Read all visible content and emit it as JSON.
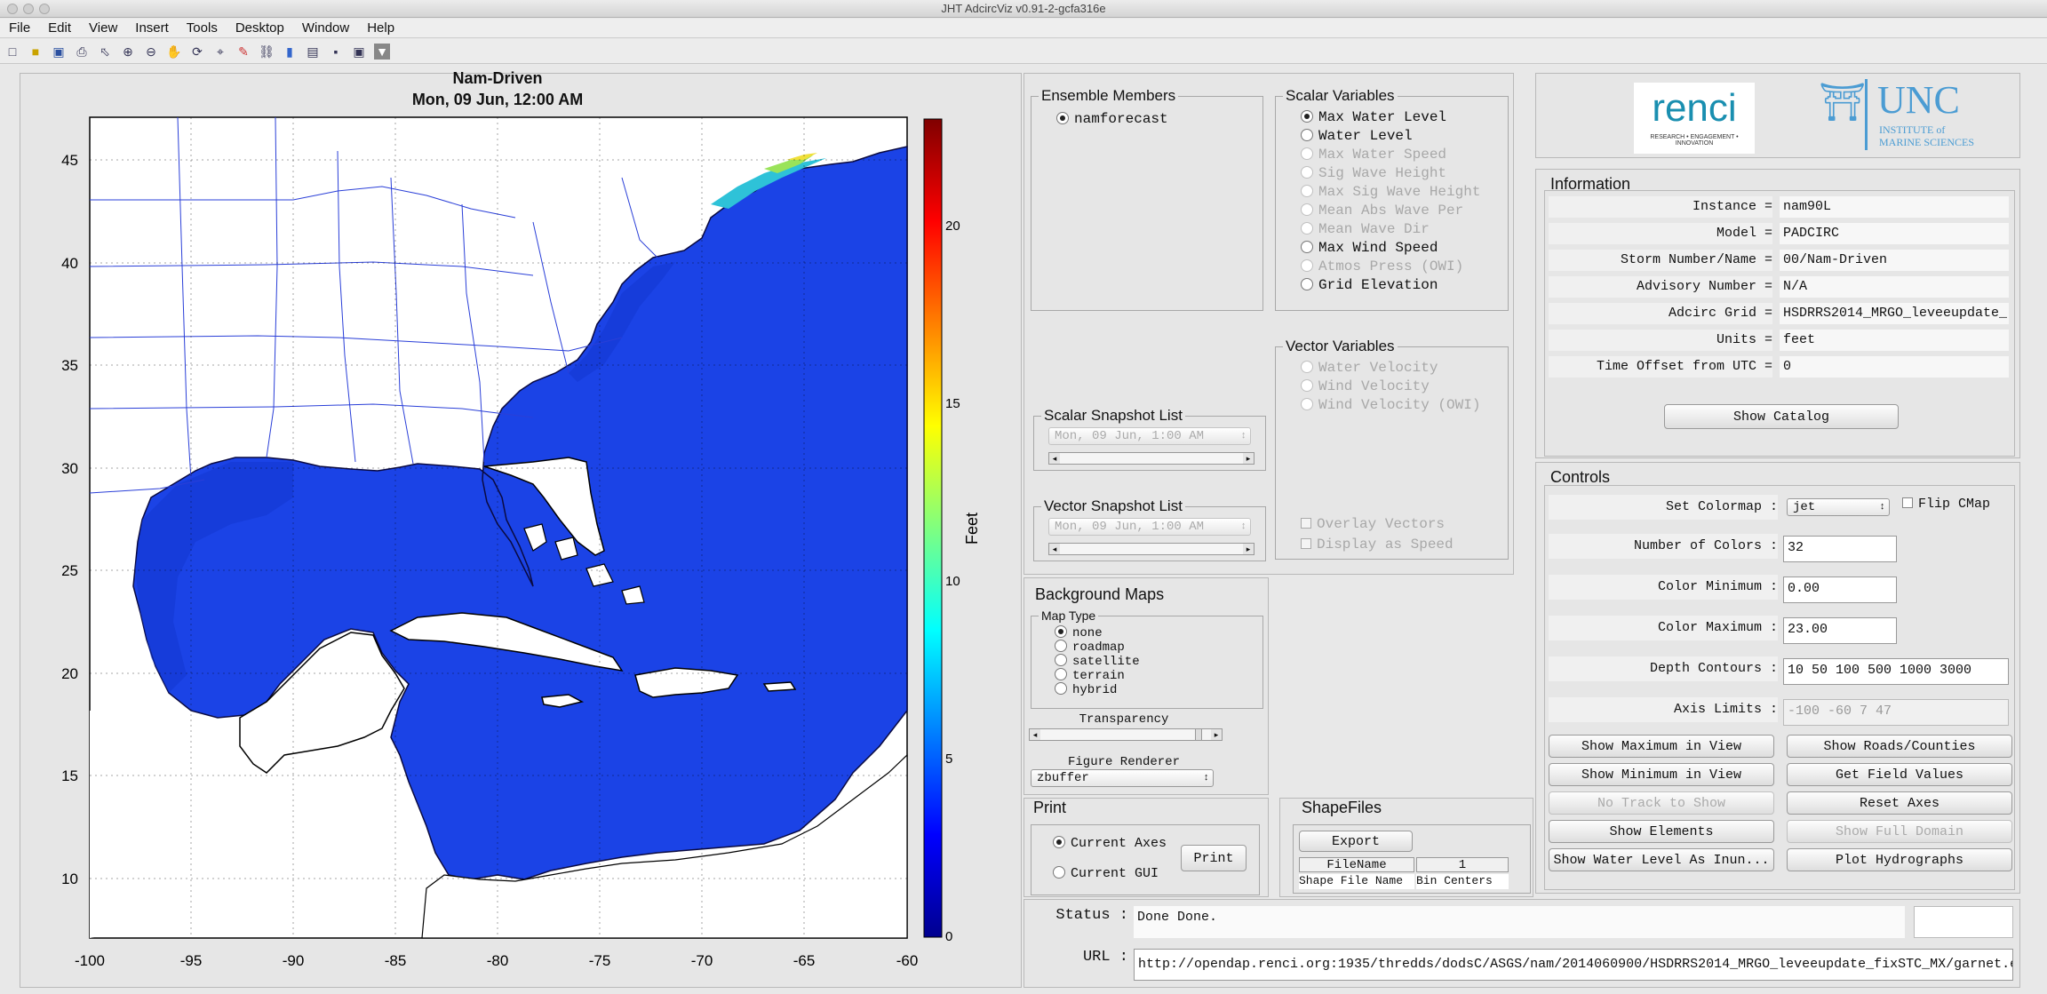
{
  "window": {
    "title": "JHT AdcircViz v0.91-2-gcfa316e"
  },
  "menu": [
    "File",
    "Edit",
    "View",
    "Insert",
    "Tools",
    "Desktop",
    "Window",
    "Help"
  ],
  "toolbar_icons": [
    "new-file-icon",
    "open-folder-icon",
    "save-icon",
    "print-icon",
    "pointer-icon",
    "zoom-in-icon",
    "zoom-out-icon",
    "pan-hand-icon",
    "rotate-icon",
    "data-cursor-icon",
    "brush-icon",
    "link-icon",
    "colorbar-icon",
    "legend-icon",
    "hide-plot-icon",
    "show-plot-icon"
  ],
  "plot": {
    "title": "Nam-Driven",
    "subtitle": "Mon, 09 Jun, 12:00 AM",
    "x_ticks": [
      "-100",
      "-95",
      "-90",
      "-85",
      "-80",
      "-75",
      "-70",
      "-65",
      "-60"
    ],
    "y_ticks": [
      "45",
      "40",
      "35",
      "30",
      "25",
      "20",
      "15",
      "10"
    ],
    "colorbar_ticks": [
      "20",
      "15",
      "10",
      "5",
      "0"
    ],
    "colorbar_label": "Feet",
    "colorbar_range": [
      0,
      23
    ],
    "colormap": "jet",
    "ocean_color": "#1a3fe0",
    "land_color": "#ffffff",
    "xlim": [
      -100,
      -60
    ],
    "ylim": [
      7,
      47
    ]
  },
  "ensemble": {
    "title": "Ensemble Members",
    "items": [
      {
        "label": "namforecast",
        "selected": true
      }
    ]
  },
  "scalar": {
    "title": "Scalar Variables",
    "items": [
      {
        "label": "Max Water Level",
        "state": "on"
      },
      {
        "label": "Water Level",
        "state": "off"
      },
      {
        "label": "Max Water Speed",
        "state": "dis"
      },
      {
        "label": "Sig Wave Height",
        "state": "dis"
      },
      {
        "label": "Max Sig Wave Height",
        "state": "dis"
      },
      {
        "label": "Mean Abs Wave Per",
        "state": "dis"
      },
      {
        "label": "Mean Wave Dir",
        "state": "dis"
      },
      {
        "label": "Max Wind Speed",
        "state": "off"
      },
      {
        "label": "Atmos Press (OWI)",
        "state": "dis"
      },
      {
        "label": "Grid Elevation",
        "state": "off"
      }
    ]
  },
  "vector": {
    "title": "Vector Variables",
    "items": [
      {
        "label": "Water Velocity"
      },
      {
        "label": "Wind Velocity"
      },
      {
        "label": "Wind Velocity (OWI)"
      }
    ],
    "overlay_label": "Overlay Vectors",
    "speed_label": "Display as Speed"
  },
  "scalar_snapshot": {
    "title": "Scalar Snapshot List",
    "value": "Mon, 09 Jun,  1:00 AM"
  },
  "vector_snapshot": {
    "title": "Vector Snapshot List",
    "value": "Mon, 09 Jun,  1:00 AM"
  },
  "background": {
    "title": "Background Maps",
    "map_type_title": "Map Type",
    "types": [
      {
        "label": "none",
        "selected": true
      },
      {
        "label": "roadmap"
      },
      {
        "label": "satellite"
      },
      {
        "label": "terrain"
      },
      {
        "label": "hybrid"
      }
    ],
    "transparency_label": "Transparency",
    "renderer_label": "Figure Renderer",
    "renderer_value": "zbuffer"
  },
  "print": {
    "title": "Print",
    "axes_label": "Current Axes",
    "gui_label": "Current GUI",
    "button": "Print"
  },
  "shapefiles": {
    "title": "ShapeFiles",
    "export": "Export",
    "col1": "FileName",
    "col2": "1",
    "row1": "Shape File Name",
    "row2": "Bin Centers"
  },
  "info": {
    "title": "Information",
    "rows": [
      {
        "label": "Instance =",
        "value": "nam90L"
      },
      {
        "label": "Model =",
        "value": "PADCIRC"
      },
      {
        "label": "Storm Number/Name =",
        "value": "00/Nam-Driven"
      },
      {
        "label": "Advisory Number =",
        "value": "N/A"
      },
      {
        "label": "Adcirc Grid =",
        "value": "HSDRRS2014_MRGO_leveeupdate_"
      },
      {
        "label": "Units =",
        "value": "feet"
      },
      {
        "label": "Time Offset from UTC =",
        "value": "0"
      }
    ],
    "catalog_button": "Show Catalog"
  },
  "logos": {
    "renci": "renci",
    "renci_tag": "RESEARCH • ENGAGEMENT • INNOVATION",
    "unc": "UNC",
    "ims1": "INSTITUTE of",
    "ims2": "MARINE SCIENCES"
  },
  "controls": {
    "title": "Controls",
    "colormap_label": "Set Colormap :",
    "colormap_value": "jet",
    "flip_label": "Flip CMap",
    "ncolors_label": "Number of Colors :",
    "ncolors_value": "32",
    "cmin_label": "Color Minimum :",
    "cmin_value": "0.00",
    "cmax_label": "Color Maximum :",
    "cmax_value": "23.00",
    "depth_label": "Depth Contours :",
    "depth_value": "10 50 100 500 1000 3000",
    "axis_label": "Axis Limits :",
    "axis_value": "-100   -60    7   47",
    "buttons": [
      {
        "label": "Show Maximum in View",
        "dis": false
      },
      {
        "label": "Show Roads/Counties",
        "dis": false
      },
      {
        "label": "Show Minimum in View",
        "dis": false
      },
      {
        "label": "Get Field Values",
        "dis": false
      },
      {
        "label": "No Track to Show",
        "dis": true
      },
      {
        "label": "Reset Axes",
        "dis": false
      },
      {
        "label": "Show Elements",
        "dis": false
      },
      {
        "label": "Show Full Domain",
        "dis": true
      },
      {
        "label": "Show Water Level As Inun...",
        "dis": false
      },
      {
        "label": "Plot Hydrographs",
        "dis": false
      }
    ]
  },
  "status": {
    "label": "Status :",
    "value": "Done Done.",
    "url_label": "URL :",
    "url_value": "http://opendap.renci.org:1935/thredds/dodsC/ASGS/nam/2014060900/HSDRRS2014_MRGO_leveeupdate_fixSTC_MX/garnet.e"
  }
}
